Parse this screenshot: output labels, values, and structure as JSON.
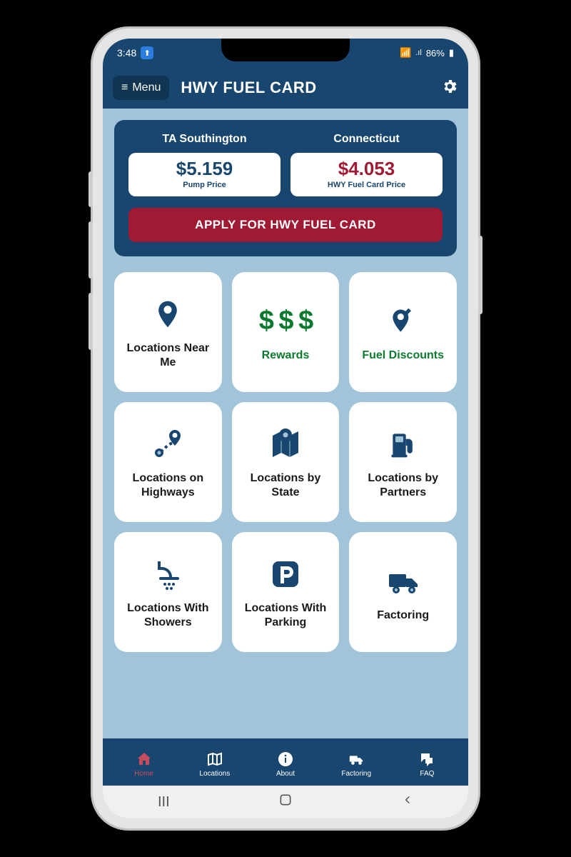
{
  "colors": {
    "primary": "#18466e",
    "primary_dark": "#0f3552",
    "accent_red": "#a01a34",
    "accent_green": "#0c7a2e",
    "screen_bg": "#a1c4d8",
    "tile_bg": "#ffffff",
    "frame_bg": "#e5e5e5",
    "page_bg": "#000000",
    "nav_active": "#c94b5e"
  },
  "status": {
    "time": "3:48",
    "battery": "86%",
    "signal": "📶",
    "net_label": "LTE"
  },
  "header": {
    "menu_label": "Menu",
    "title": "HWY FUEL CARD"
  },
  "price_card": {
    "loc_label": "TA Southington",
    "state_label": "Connecticut",
    "pump_price": "$5.159",
    "pump_sub": "Pump Price",
    "card_price": "$4.053",
    "card_sub": "HWY Fuel Card Price",
    "apply_label": "APPLY FOR HWY FUEL CARD"
  },
  "tiles": [
    {
      "label": "Locations Near Me",
      "icon": "pin",
      "label_color": "default"
    },
    {
      "label": "Rewards",
      "icon": "dollars",
      "label_color": "green"
    },
    {
      "label": "Fuel Discounts",
      "icon": "pin-edit",
      "label_color": "green"
    },
    {
      "label": "Locations on Highways",
      "icon": "route",
      "label_color": "default"
    },
    {
      "label": "Locations by State",
      "icon": "map-pin",
      "label_color": "default"
    },
    {
      "label": "Locations by Partners",
      "icon": "gas-pump",
      "label_color": "default"
    },
    {
      "label": "Locations With Showers",
      "icon": "shower",
      "label_color": "default"
    },
    {
      "label": "Locations With Parking",
      "icon": "parking",
      "label_color": "default"
    },
    {
      "label": "Factoring",
      "icon": "truck",
      "label_color": "default"
    }
  ],
  "nav": [
    {
      "label": "Home",
      "icon": "home",
      "active": true
    },
    {
      "label": "Locations",
      "icon": "map",
      "active": false
    },
    {
      "label": "About",
      "icon": "info",
      "active": false
    },
    {
      "label": "Factoring",
      "icon": "truck-small",
      "active": false
    },
    {
      "label": "FAQ",
      "icon": "chat",
      "active": false
    }
  ],
  "dollars_text": "$ $ $"
}
